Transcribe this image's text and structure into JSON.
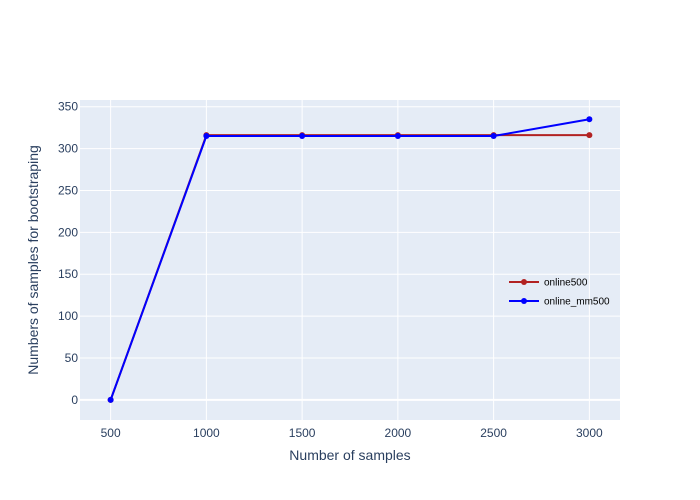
{
  "chart_data": {
    "type": "line",
    "title": "",
    "xlabel": "Number of samples",
    "ylabel": "Numbers of samples for bootstraping",
    "x": [
      500,
      1000,
      1500,
      2000,
      2500,
      3000
    ],
    "xlim": [
      340,
      3160
    ],
    "ylim": [
      -24,
      358
    ],
    "x_ticks": [
      500,
      1000,
      1500,
      2000,
      2500,
      3000
    ],
    "y_ticks": [
      0,
      50,
      100,
      150,
      200,
      250,
      300,
      350
    ],
    "grid": true,
    "legend_position": "right",
    "series": [
      {
        "name": "online500",
        "color": "#b22222",
        "values": [
          0,
          316,
          316,
          316,
          316,
          316
        ]
      },
      {
        "name": "online_mm500",
        "color": "#0000ff",
        "values": [
          0,
          315,
          315,
          315,
          315,
          335
        ]
      }
    ],
    "plot_background": "#e5ecf6",
    "grid_color": "#ffffff",
    "text_color": "#2a3f5f"
  }
}
